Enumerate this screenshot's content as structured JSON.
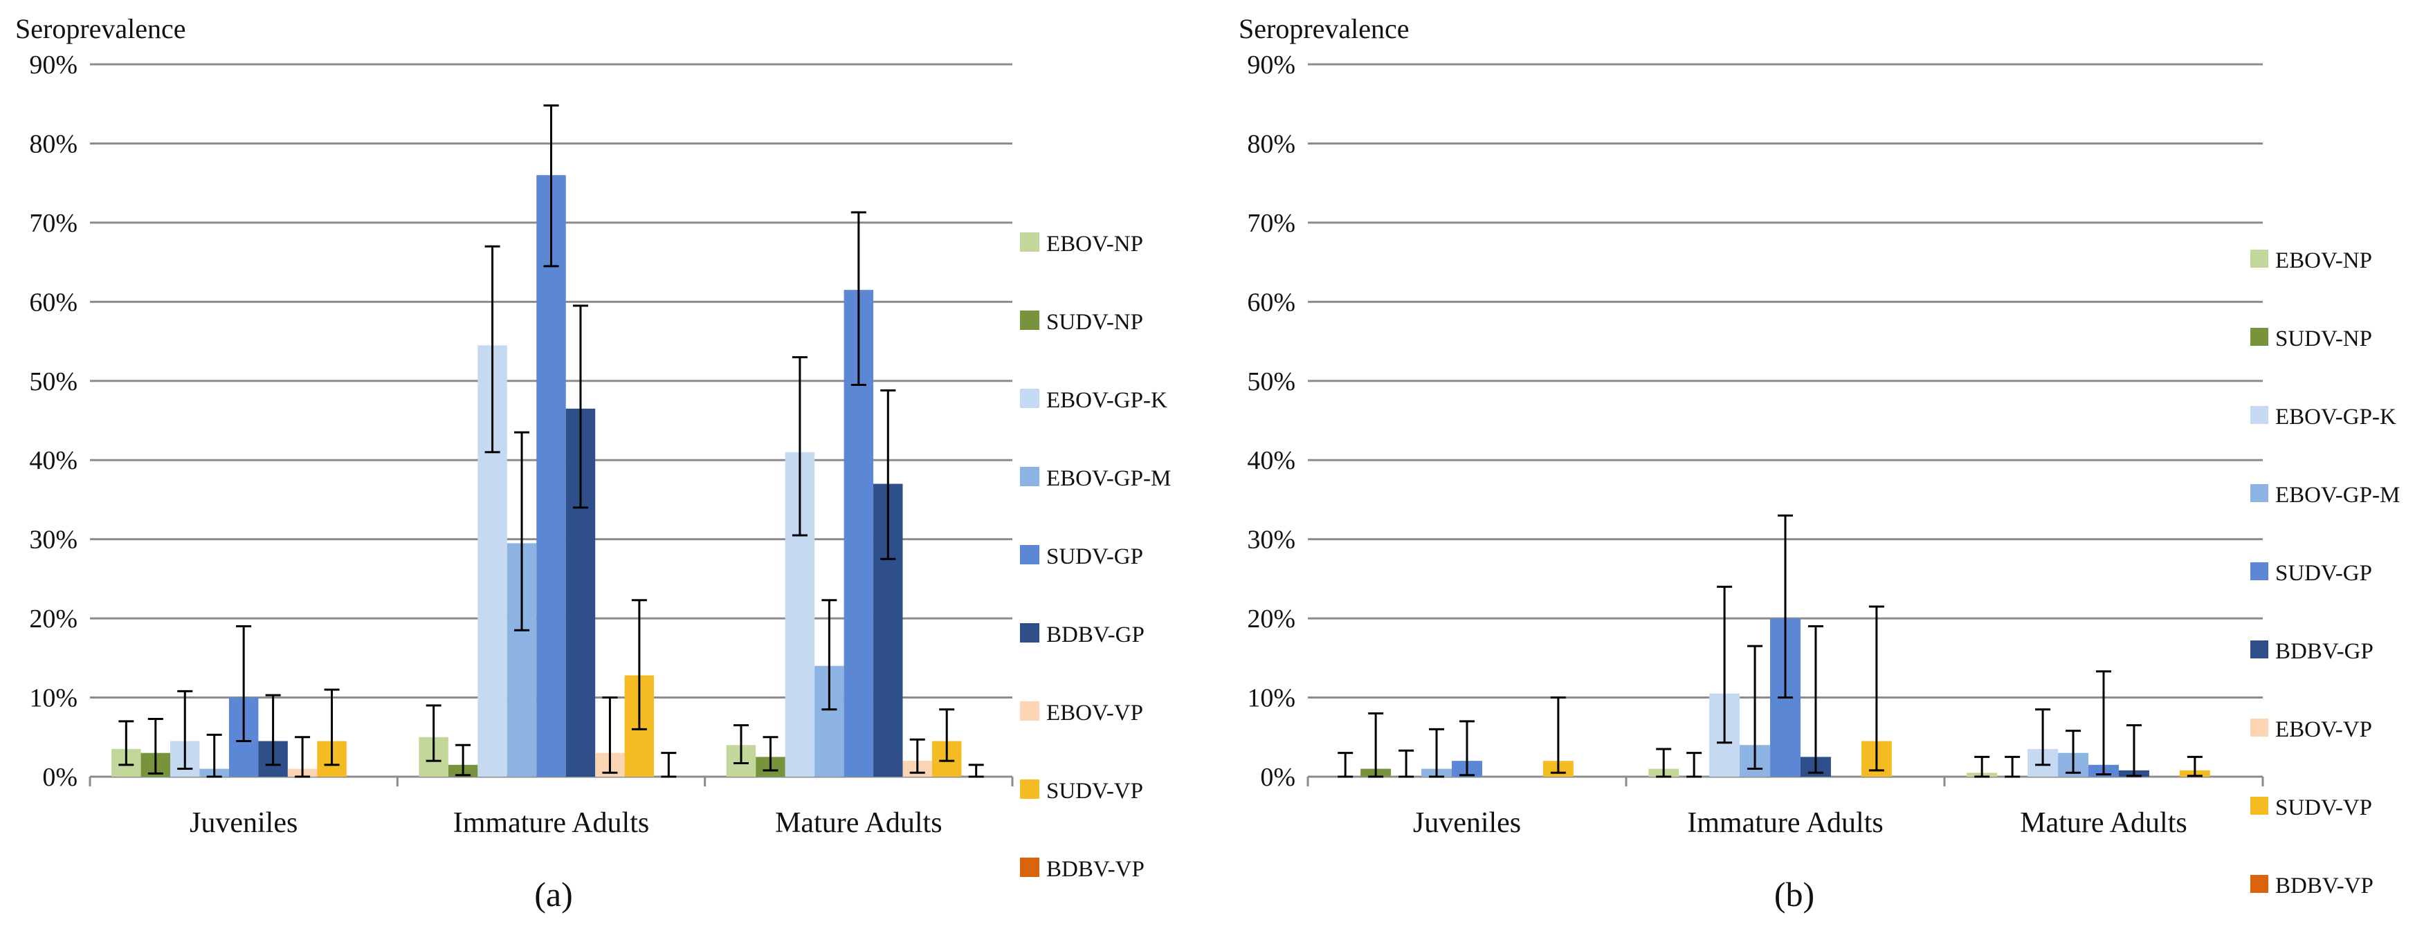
{
  "figure": {
    "panel_labels": [
      "(a)",
      "(b)"
    ]
  },
  "chart_data": [
    {
      "type": "bar",
      "panel": "(a)",
      "title": "",
      "ylabel": "Seroprevalence",
      "xlabel": "",
      "ylim": [
        0,
        90
      ],
      "ytick_values": [
        0,
        10,
        20,
        30,
        40,
        50,
        60,
        70,
        80,
        90
      ],
      "ytick_labels": [
        "0%",
        "10%",
        "20%",
        "30%",
        "40%",
        "50%",
        "60%",
        "70%",
        "80%",
        "90%"
      ],
      "grid": true,
      "legend_position": "right",
      "categories": [
        "Juveniles",
        "Immature Adults",
        "Mature Adults"
      ],
      "series": [
        {
          "name": "EBOV-NP",
          "color": "#c4d79b",
          "values": [
            3.5,
            5.0,
            4.0
          ],
          "err_low": [
            1.5,
            2.0,
            1.7
          ],
          "err_high": [
            7.0,
            9.0,
            6.5
          ]
        },
        {
          "name": "SUDV-NP",
          "color": "#77933c",
          "values": [
            3.0,
            1.5,
            2.5
          ],
          "err_low": [
            0.4,
            0.2,
            0.8
          ],
          "err_high": [
            7.3,
            4.0,
            5.0
          ]
        },
        {
          "name": "EBOV-GP-K",
          "color": "#c5d9f1",
          "values": [
            4.5,
            54.5,
            41.0
          ],
          "err_low": [
            1.0,
            41.0,
            30.5
          ],
          "err_high": [
            10.8,
            67.0,
            53.0
          ]
        },
        {
          "name": "EBOV-GP-M",
          "color": "#8db3e2",
          "values": [
            1.0,
            29.5,
            14.0
          ],
          "err_low": [
            0.0,
            18.5,
            8.5
          ],
          "err_high": [
            5.3,
            43.5,
            22.3
          ]
        },
        {
          "name": "SUDV-GP",
          "color": "#5b87d5",
          "values": [
            10.0,
            76.0,
            61.5
          ],
          "err_low": [
            4.5,
            64.5,
            49.5
          ],
          "err_high": [
            19.0,
            84.8,
            71.3
          ]
        },
        {
          "name": "BDBV-GP",
          "color": "#2f4f8b",
          "values": [
            4.5,
            46.5,
            37.0
          ],
          "err_low": [
            1.5,
            34.0,
            27.5
          ],
          "err_high": [
            10.3,
            59.5,
            48.8
          ]
        },
        {
          "name": "EBOV-VP",
          "color": "#fbd4b4",
          "values": [
            1.0,
            3.0,
            2.0
          ],
          "err_low": [
            0.0,
            0.5,
            0.5
          ],
          "err_high": [
            5.0,
            10.0,
            4.7
          ]
        },
        {
          "name": "SUDV-VP",
          "color": "#f5bb22",
          "values": [
            4.5,
            12.8,
            4.5
          ],
          "err_low": [
            1.5,
            6.0,
            2.0
          ],
          "err_high": [
            11.0,
            22.3,
            8.5
          ]
        },
        {
          "name": "BDBV-VP",
          "color": "#d9640d",
          "values": [
            0.0,
            0.0,
            0.0
          ],
          "err_low": [
            0.0,
            0.0,
            0.0
          ],
          "err_high": [
            0.0,
            3.0,
            1.5
          ]
        }
      ]
    },
    {
      "type": "bar",
      "panel": "(b)",
      "title": "",
      "ylabel": "Seroprevalence",
      "xlabel": "",
      "ylim": [
        0,
        90
      ],
      "ytick_values": [
        0,
        10,
        20,
        30,
        40,
        50,
        60,
        70,
        80,
        90
      ],
      "ytick_labels": [
        "0%",
        "10%",
        "20%",
        "30%",
        "40%",
        "50%",
        "60%",
        "70%",
        "80%",
        "90%"
      ],
      "grid": true,
      "legend_position": "right",
      "categories": [
        "Juveniles",
        "Immature Adults",
        "Mature Adults"
      ],
      "series": [
        {
          "name": "EBOV-NP",
          "color": "#c4d79b",
          "values": [
            0.0,
            1.0,
            0.5
          ],
          "err_low": [
            0.0,
            0.0,
            0.0
          ],
          "err_high": [
            3.0,
            3.5,
            2.5
          ]
        },
        {
          "name": "SUDV-NP",
          "color": "#77933c",
          "values": [
            1.0,
            0.0,
            0.0
          ],
          "err_low": [
            0.0,
            0.0,
            0.0
          ],
          "err_high": [
            8.0,
            3.0,
            2.5
          ]
        },
        {
          "name": "EBOV-GP-K",
          "color": "#c5d9f1",
          "values": [
            0.0,
            10.5,
            3.5
          ],
          "err_low": [
            0.0,
            4.3,
            1.5
          ],
          "err_high": [
            3.3,
            24.0,
            8.5
          ]
        },
        {
          "name": "EBOV-GP-M",
          "color": "#8db3e2",
          "values": [
            1.0,
            4.0,
            3.0
          ],
          "err_low": [
            0.0,
            1.0,
            0.5
          ],
          "err_high": [
            6.0,
            16.5,
            5.8
          ]
        },
        {
          "name": "SUDV-GP",
          "color": "#5b87d5",
          "values": [
            2.0,
            20.0,
            1.5
          ],
          "err_low": [
            0.2,
            10.0,
            0.3
          ],
          "err_high": [
            7.0,
            33.0,
            13.3
          ]
        },
        {
          "name": "BDBV-GP",
          "color": "#2f4f8b",
          "values": [
            0.0,
            2.5,
            0.8
          ],
          "err_low": [
            0.0,
            0.5,
            0.1
          ],
          "err_high": [
            0.0,
            19.0,
            6.5
          ]
        },
        {
          "name": "EBOV-VP",
          "color": "#fbd4b4",
          "values": [
            0.0,
            0.0,
            0.0
          ],
          "err_low": [
            0.0,
            0.0,
            0.0
          ],
          "err_high": [
            0.0,
            0.0,
            0.0
          ]
        },
        {
          "name": "SUDV-VP",
          "color": "#f5bb22",
          "values": [
            2.0,
            4.5,
            0.8
          ],
          "err_low": [
            0.5,
            0.8,
            0.1
          ],
          "err_high": [
            10.0,
            21.5,
            2.5
          ]
        },
        {
          "name": "BDBV-VP",
          "color": "#d9640d",
          "values": [
            0.0,
            0.0,
            0.0
          ],
          "err_low": [
            0.0,
            0.0,
            0.0
          ],
          "err_high": [
            0.0,
            0.0,
            0.0
          ]
        }
      ]
    }
  ]
}
